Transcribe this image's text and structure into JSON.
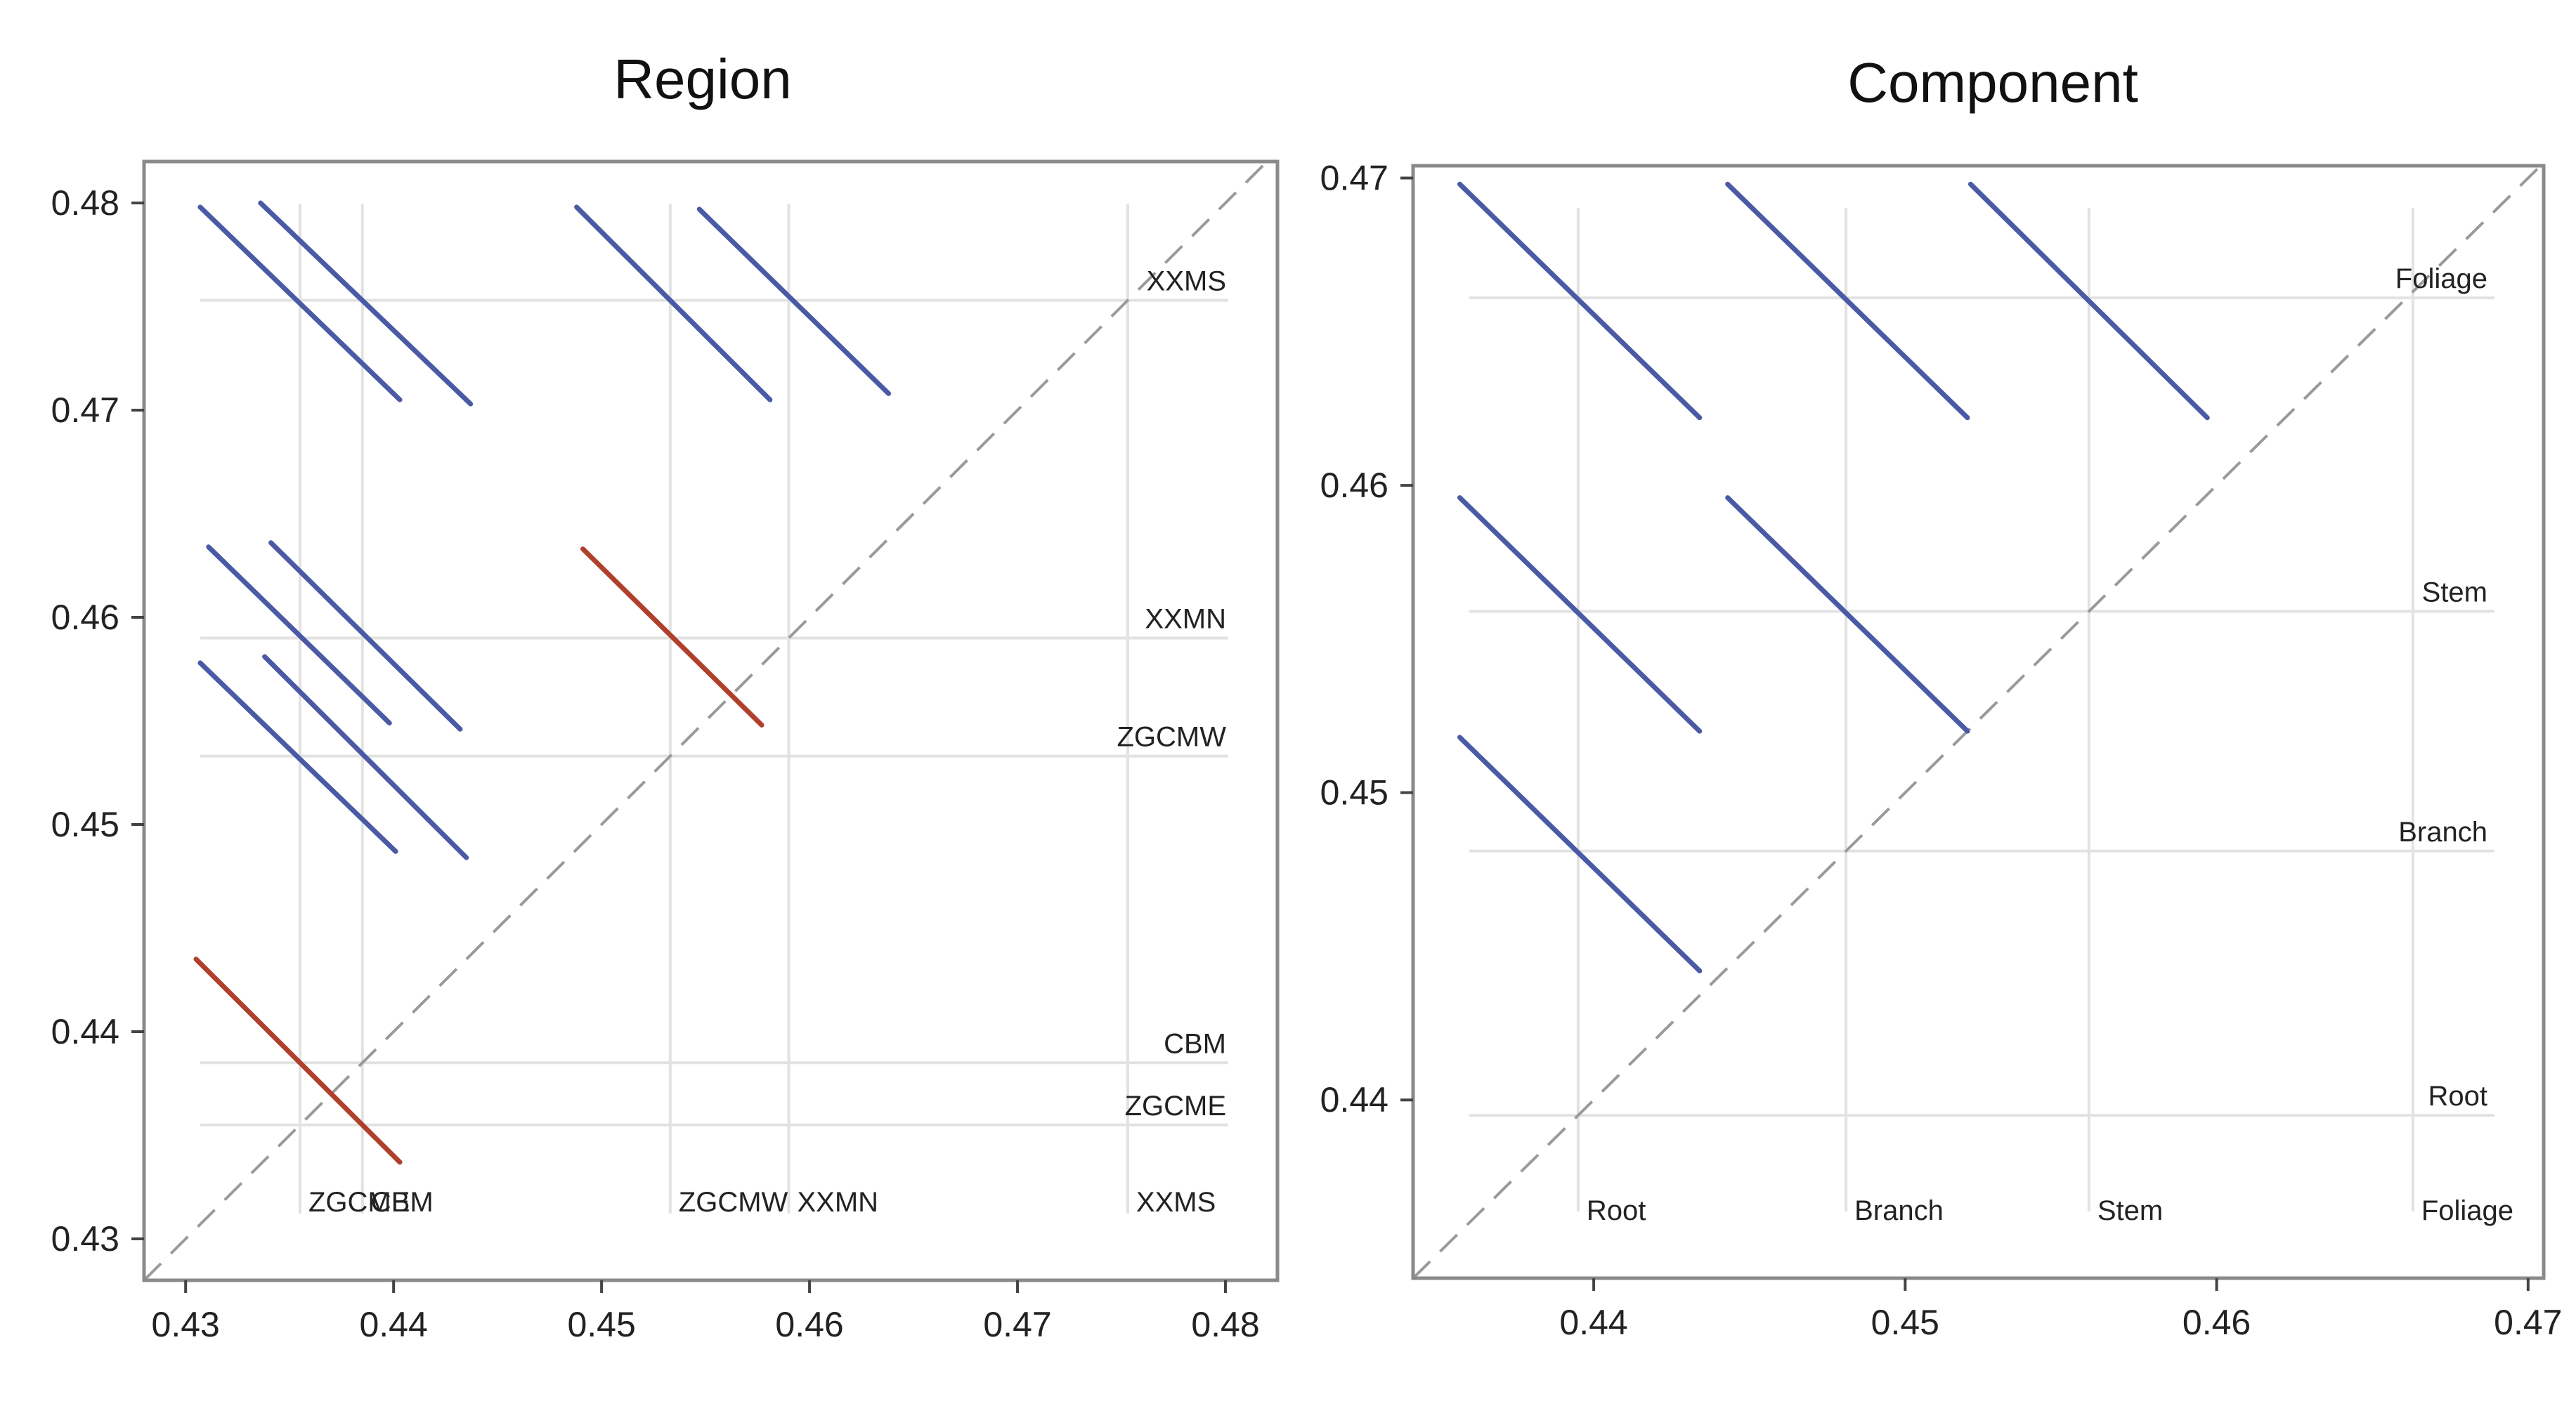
{
  "chart_data": [
    {
      "type": "scatter",
      "title": "Region",
      "xlim": [
        0.428,
        0.4825
      ],
      "ylim": [
        0.428,
        0.482
      ],
      "xticks": [
        "0.43",
        "0.44",
        "0.45",
        "0.46",
        "0.47",
        "0.48"
      ],
      "yticks": [
        "0.43",
        "0.44",
        "0.45",
        "0.46",
        "0.47",
        "0.48"
      ],
      "grid_x": [
        {
          "label": "ZGCME",
          "value": 0.4355
        },
        {
          "label": "CBM",
          "value": 0.4385
        },
        {
          "label": "ZGCMW",
          "value": 0.4533
        },
        {
          "label": "XXMN",
          "value": 0.459
        },
        {
          "label": "XXMS",
          "value": 0.4753
        }
      ],
      "grid_y": [
        {
          "label": "ZGCME",
          "value": 0.4355
        },
        {
          "label": "CBM",
          "value": 0.4385
        },
        {
          "label": "ZGCMW",
          "value": 0.4533
        },
        {
          "label": "XXMN",
          "value": 0.459
        },
        {
          "label": "XXMS",
          "value": 0.4753
        }
      ],
      "diagonal": true,
      "segments": [
        {
          "x1": 0.4307,
          "y1": 0.4798,
          "x2": 0.4403,
          "y2": 0.4705,
          "color": "#4a5aa4"
        },
        {
          "x1": 0.4336,
          "y1": 0.48,
          "x2": 0.4437,
          "y2": 0.4703,
          "color": "#4a5aa4"
        },
        {
          "x1": 0.4488,
          "y1": 0.4798,
          "x2": 0.4581,
          "y2": 0.4705,
          "color": "#4a5aa4"
        },
        {
          "x1": 0.4547,
          "y1": 0.4797,
          "x2": 0.4638,
          "y2": 0.4708,
          "color": "#4a5aa4"
        },
        {
          "x1": 0.4311,
          "y1": 0.4634,
          "x2": 0.4398,
          "y2": 0.4549,
          "color": "#4a5aa4"
        },
        {
          "x1": 0.4341,
          "y1": 0.4636,
          "x2": 0.4432,
          "y2": 0.4546,
          "color": "#4a5aa4"
        },
        {
          "x1": 0.4307,
          "y1": 0.4578,
          "x2": 0.4401,
          "y2": 0.4487,
          "color": "#4a5aa4"
        },
        {
          "x1": 0.4338,
          "y1": 0.4581,
          "x2": 0.4435,
          "y2": 0.4484,
          "color": "#4a5aa4"
        },
        {
          "x1": 0.4491,
          "y1": 0.4633,
          "x2": 0.4577,
          "y2": 0.4548,
          "color": "#b0402c"
        },
        {
          "x1": 0.4305,
          "y1": 0.4435,
          "x2": 0.4403,
          "y2": 0.4337,
          "color": "#b0402c"
        }
      ]
    },
    {
      "type": "scatter",
      "title": "Component",
      "xlim": [
        0.4342,
        0.4705
      ],
      "ylim": [
        0.4342,
        0.4704
      ],
      "xticks": [
        "0.44",
        "0.45",
        "0.46",
        "0.47"
      ],
      "yticks": [
        "0.44",
        "0.45",
        "0.46",
        "0.47"
      ],
      "grid_x": [
        {
          "label": "Root",
          "value": 0.4395
        },
        {
          "label": "Branch",
          "value": 0.4481
        },
        {
          "label": "Stem",
          "value": 0.4559
        },
        {
          "label": "Foliage",
          "value": 0.4663
        }
      ],
      "grid_y": [
        {
          "label": "Root",
          "value": 0.4395
        },
        {
          "label": "Branch",
          "value": 0.4481
        },
        {
          "label": "Stem",
          "value": 0.4559
        },
        {
          "label": "Foliage",
          "value": 0.4661
        }
      ],
      "diagonal": true,
      "segments": [
        {
          "x1": 0.4357,
          "y1": 0.4698,
          "x2": 0.4434,
          "y2": 0.4622,
          "color": "#4a5aa4"
        },
        {
          "x1": 0.4443,
          "y1": 0.4698,
          "x2": 0.452,
          "y2": 0.4622,
          "color": "#4a5aa4"
        },
        {
          "x1": 0.4521,
          "y1": 0.4698,
          "x2": 0.4597,
          "y2": 0.4622,
          "color": "#4a5aa4"
        },
        {
          "x1": 0.4357,
          "y1": 0.4596,
          "x2": 0.4434,
          "y2": 0.452,
          "color": "#4a5aa4"
        },
        {
          "x1": 0.4443,
          "y1": 0.4596,
          "x2": 0.452,
          "y2": 0.452,
          "color": "#4a5aa4"
        },
        {
          "x1": 0.4357,
          "y1": 0.4518,
          "x2": 0.4434,
          "y2": 0.4442,
          "color": "#4a5aa4"
        }
      ]
    }
  ]
}
